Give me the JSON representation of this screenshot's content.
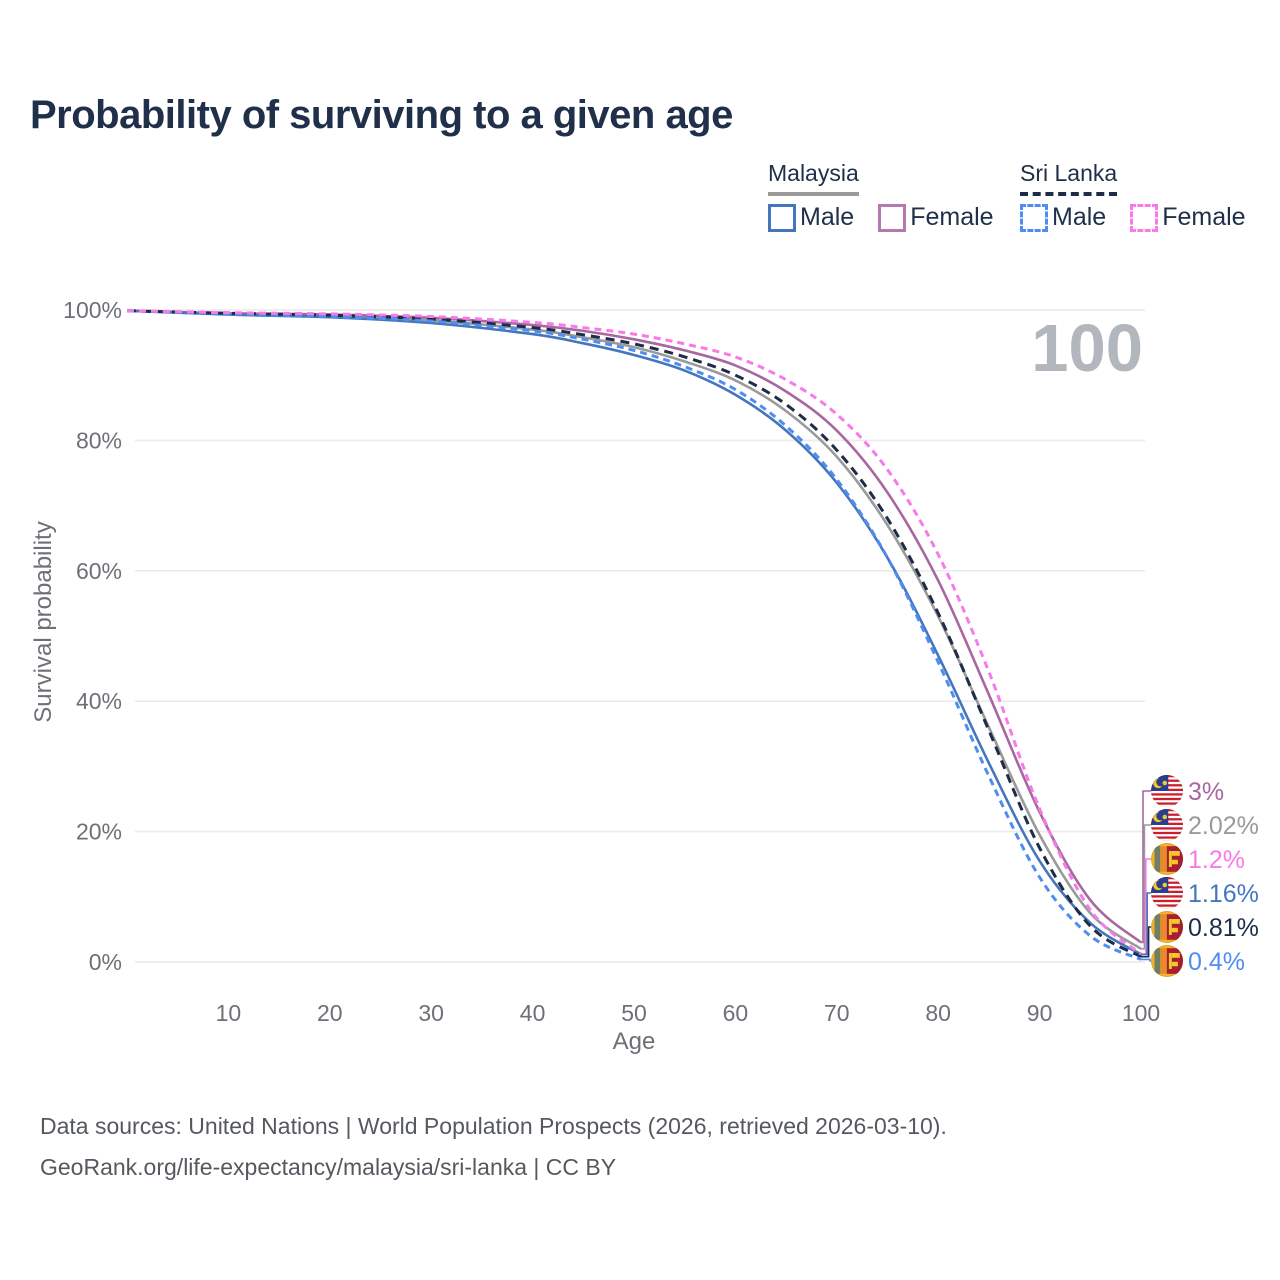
{
  "title": "Probability of surviving to a given age",
  "watermark": "100",
  "legend": {
    "groups": [
      {
        "label": "Malaysia",
        "line_style": "solid",
        "underline_color": "#9a9a9a",
        "items": [
          {
            "label": "Male",
            "color": "#4576bd",
            "style": "solid"
          },
          {
            "label": "Female",
            "color": "#b678ae",
            "style": "solid"
          }
        ]
      },
      {
        "label": "Sri Lanka",
        "line_style": "dashed",
        "underline_color": "#1e2c48",
        "items": [
          {
            "label": "Male",
            "color": "#4f8df2",
            "style": "dashed"
          },
          {
            "label": "Female",
            "color": "#f879e8",
            "style": "dashed"
          }
        ]
      }
    ]
  },
  "chart_data": {
    "type": "line",
    "title": "Probability of surviving to a given age",
    "xlabel": "Age",
    "ylabel": "Survival probability",
    "xlim": [
      0,
      100
    ],
    "ylim": [
      0,
      100
    ],
    "xticks": [
      10,
      20,
      30,
      40,
      50,
      60,
      70,
      80,
      90,
      100
    ],
    "yticks": [
      {
        "value": 0,
        "label": "0%"
      },
      {
        "value": 20,
        "label": "20%"
      },
      {
        "value": 40,
        "label": "40%"
      },
      {
        "value": 60,
        "label": "60%"
      },
      {
        "value": 80,
        "label": "80%"
      },
      {
        "value": 100,
        "label": "100%"
      }
    ],
    "grid": "horizontal",
    "legend_position": "top-right",
    "x": [
      0,
      10,
      20,
      30,
      40,
      45,
      50,
      55,
      60,
      65,
      70,
      75,
      80,
      85,
      90,
      95,
      100
    ],
    "series": [
      {
        "id": "my_total",
        "name": "Malaysia (both sexes)",
        "country": "Malaysia",
        "sex": "total",
        "color": "#9a9a9a",
        "dash": "solid",
        "flag": "malaysia",
        "end_label": "2.02%",
        "end_value": 2.02,
        "values": [
          99.9,
          99.4,
          99.1,
          98.4,
          97.0,
          95.8,
          94.3,
          92.1,
          89.2,
          84.5,
          77.5,
          67.0,
          53.0,
          36.0,
          19.5,
          7.5,
          2.02
        ]
      },
      {
        "id": "my_female",
        "name": "Malaysia Female",
        "country": "Malaysia",
        "sex": "female",
        "color": "#a867a0",
        "dash": "solid",
        "flag": "malaysia",
        "end_label": "3%",
        "end_value": 3.0,
        "values": [
          99.9,
          99.5,
          99.3,
          98.8,
          97.7,
          96.8,
          95.5,
          93.8,
          91.5,
          87.5,
          81.5,
          72.0,
          58.5,
          41.0,
          23.0,
          9.5,
          3.0
        ]
      },
      {
        "id": "my_male",
        "name": "Malaysia Male",
        "country": "Malaysia",
        "sex": "male",
        "color": "#4576bd",
        "dash": "solid",
        "flag": "malaysia",
        "end_label": "1.16%",
        "end_value": 1.16,
        "values": [
          99.9,
          99.3,
          98.9,
          98.0,
          96.3,
          94.9,
          93.1,
          90.7,
          87.0,
          81.5,
          73.5,
          62.0,
          47.0,
          30.5,
          15.5,
          6.0,
          1.16
        ]
      },
      {
        "id": "sl_total",
        "name": "Sri Lanka (both sexes)",
        "country": "Sri Lanka",
        "sex": "total",
        "color": "#1e2c48",
        "dash": "9 6",
        "flag": "sri-lanka",
        "end_label": "0.81%",
        "end_value": 0.81,
        "values": [
          99.9,
          99.5,
          99.2,
          98.6,
          97.3,
          96.2,
          94.8,
          92.8,
          90.0,
          85.5,
          78.5,
          68.0,
          53.5,
          35.5,
          17.5,
          5.5,
          0.81
        ]
      },
      {
        "id": "sl_male",
        "name": "Sri Lanka Male",
        "country": "Sri Lanka",
        "sex": "male",
        "color": "#4f8df2",
        "dash": "7 5",
        "flag": "sri-lanka",
        "end_label": "0.4%",
        "end_value": 0.4,
        "values": [
          99.9,
          99.4,
          99.0,
          98.3,
          96.8,
          95.5,
          93.8,
          91.3,
          87.8,
          82.2,
          74.0,
          62.0,
          46.0,
          28.5,
          13.0,
          4.0,
          0.4
        ]
      },
      {
        "id": "sl_female",
        "name": "Sri Lanka Female",
        "country": "Sri Lanka",
        "sex": "female",
        "color": "#f879e8",
        "dash": "7 5",
        "flag": "sri-lanka",
        "end_label": "1.2%",
        "end_value": 1.2,
        "values": [
          99.9,
          99.6,
          99.4,
          99.0,
          98.1,
          97.3,
          96.3,
          94.8,
          92.8,
          89.3,
          84.0,
          75.5,
          62.5,
          44.5,
          23.5,
          8.0,
          1.2
        ]
      }
    ],
    "end_label_order": [
      "my_female",
      "my_total",
      "sl_female",
      "my_male",
      "sl_total",
      "sl_male"
    ]
  },
  "colors": {
    "title_text": "#20304a",
    "axis_text": "#6d7076",
    "grid": "#ececec",
    "watermark": "#b2b6bd",
    "footer_text": "#55595f"
  },
  "footer": {
    "line1": "Data sources: United Nations | World Population Prospects (2026, retrieved 2026-03-10).",
    "line2": "GeoRank.org/life-expectancy/malaysia/sri-lanka | CC BY"
  }
}
